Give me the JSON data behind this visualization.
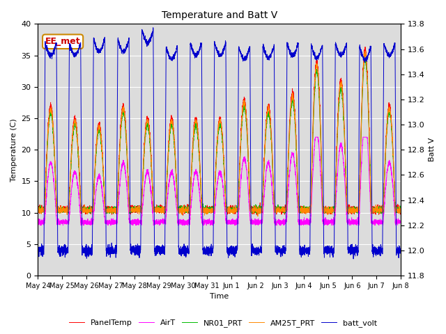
{
  "title": "Temperature and Batt V",
  "xlabel": "Time",
  "ylabel_left": "Temperature (C)",
  "ylabel_right": "Batt V",
  "annotation": "EE_met",
  "ylim_left": [
    0,
    40
  ],
  "ylim_right": [
    11.8,
    13.8
  ],
  "background_color": "#dcdcdc",
  "figure_color": "#ffffff",
  "legend_entries": [
    "PanelTemp",
    "AirT",
    "NR01_PRT",
    "AM25T_PRT",
    "batt_volt"
  ],
  "legend_colors": [
    "#ff0000",
    "#ff00ff",
    "#00bb00",
    "#ff8800",
    "#0000cc"
  ],
  "x_tick_labels": [
    "May 24",
    "May 25",
    "May 26",
    "May 27",
    "May 28",
    "May 29",
    "May 30",
    "May 31",
    "Jun 1",
    "Jun 2",
    "Jun 3",
    "Jun 4",
    "Jun 5",
    "Jun 6",
    "Jun 7",
    "Jun 8"
  ],
  "num_days": 15,
  "n_per_day": 288
}
